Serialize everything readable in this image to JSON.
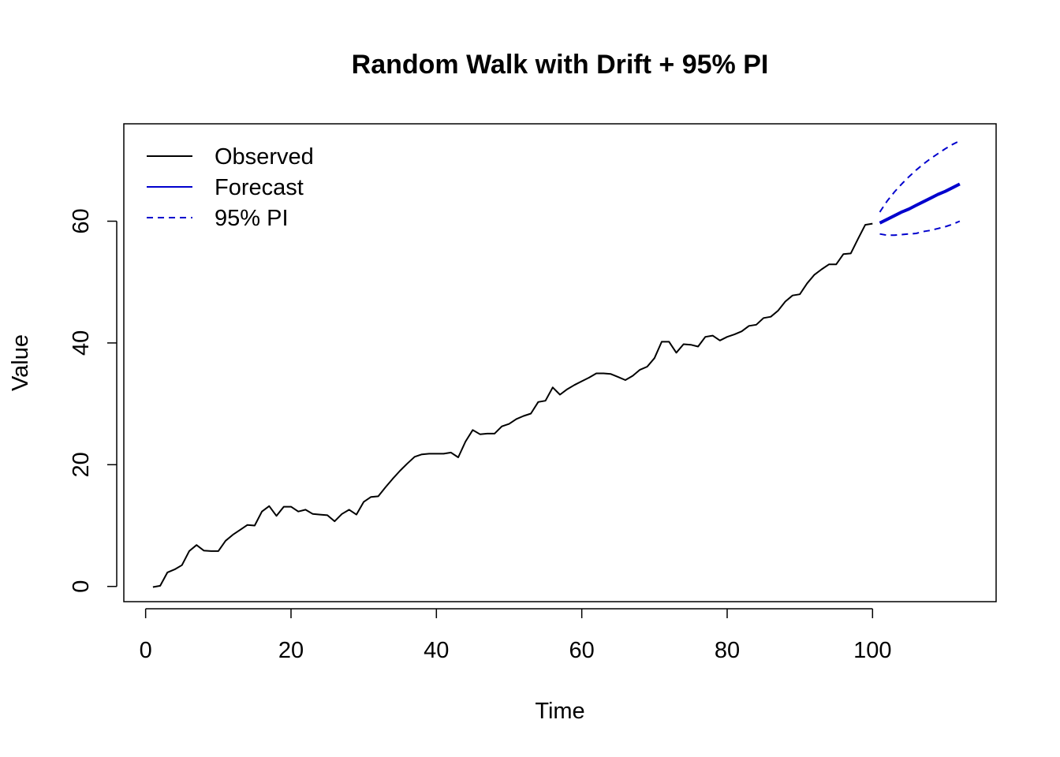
{
  "chart_data": {
    "type": "line",
    "title": "Random Walk with Drift + 95% PI",
    "xlabel": "Time",
    "ylabel": "Value",
    "xlim": [
      -3,
      117
    ],
    "ylim": [
      -2.5,
      76
    ],
    "x_ticks": [
      0,
      20,
      40,
      60,
      80,
      100
    ],
    "y_ticks": [
      0,
      20,
      40,
      60
    ],
    "grid": false,
    "legend_position": "top-left",
    "series": [
      {
        "name": "Observed",
        "color": "#000000",
        "style": "solid",
        "x": [
          1,
          2,
          3,
          4,
          5,
          6,
          7,
          8,
          9,
          10,
          11,
          12,
          13,
          14,
          15,
          16,
          17,
          18,
          19,
          20,
          21,
          22,
          23,
          24,
          25,
          26,
          27,
          28,
          29,
          30,
          31,
          32,
          33,
          34,
          35,
          36,
          37,
          38,
          39,
          40,
          41,
          42,
          43,
          44,
          45,
          46,
          47,
          48,
          49,
          50,
          51,
          52,
          53,
          54,
          55,
          56,
          57,
          58,
          59,
          60,
          61,
          62,
          63,
          64,
          65,
          66,
          67,
          68,
          69,
          70,
          71,
          72,
          73,
          74,
          75,
          76,
          77,
          78,
          79,
          80,
          81,
          82,
          83,
          84,
          85,
          86,
          87,
          88,
          89,
          90,
          91,
          92,
          93,
          94,
          95,
          96,
          97,
          98,
          99,
          100
        ],
        "values": [
          -0.1,
          0.1,
          2.3,
          2.8,
          3.5,
          5.8,
          6.8,
          5.9,
          5.8,
          5.8,
          7.5,
          8.5,
          9.3,
          10.1,
          10.0,
          12.3,
          13.2,
          11.6,
          13.1,
          13.1,
          12.3,
          12.6,
          11.9,
          11.8,
          11.7,
          10.7,
          11.9,
          12.6,
          11.8,
          13.9,
          14.7,
          14.8,
          16.3,
          17.7,
          19.0,
          20.2,
          21.3,
          21.7,
          21.8,
          21.8,
          21.8,
          22.0,
          21.2,
          23.8,
          25.7,
          25.0,
          25.1,
          25.1,
          26.3,
          26.7,
          27.5,
          28.0,
          28.4,
          30.3,
          30.5,
          32.7,
          31.5,
          32.4,
          33.1,
          33.7,
          34.3,
          35.0,
          35.0,
          34.9,
          34.4,
          33.9,
          34.6,
          35.6,
          36.1,
          37.5,
          40.2,
          40.2,
          38.4,
          39.8,
          39.7,
          39.4,
          41.0,
          41.2,
          40.4,
          41.0,
          41.4,
          41.9,
          42.8,
          43.0,
          44.1,
          44.3,
          45.3,
          46.8,
          47.8,
          48.0,
          49.8,
          51.2,
          52.1,
          52.9,
          52.9,
          54.6,
          54.7,
          57.1,
          59.4,
          59.6
        ]
      },
      {
        "name": "Forecast",
        "color": "#0000cd",
        "style": "solid-thick",
        "x": [
          101,
          102,
          103,
          104,
          105,
          106,
          107,
          108,
          109,
          110,
          111,
          112
        ],
        "values": [
          59.7,
          60.3,
          60.9,
          61.5,
          62.0,
          62.6,
          63.2,
          63.8,
          64.4,
          64.9,
          65.5,
          66.1
        ]
      },
      {
        "name": "95% PI",
        "color": "#0000cd",
        "style": "dashed",
        "x": [
          101,
          102,
          103,
          104,
          105,
          106,
          107,
          108,
          109,
          110,
          111,
          112
        ],
        "values": [
          61.5,
          63.3,
          64.8,
          66.1,
          67.3,
          68.4,
          69.4,
          70.3,
          71.1,
          71.9,
          72.6,
          73.2
        ]
      },
      {
        "name": "95% PI",
        "color": "#0000cd",
        "style": "dashed",
        "x": [
          101,
          102,
          103,
          104,
          105,
          106,
          107,
          108,
          109,
          110,
          111,
          112
        ],
        "values": [
          57.9,
          57.7,
          57.7,
          57.8,
          57.9,
          58.0,
          58.3,
          58.5,
          58.8,
          59.1,
          59.5,
          60.0
        ]
      }
    ],
    "legend": [
      {
        "label": "Observed",
        "color": "#000000",
        "style": "solid"
      },
      {
        "label": "Forecast",
        "color": "#0000cd",
        "style": "solid"
      },
      {
        "label": "95% PI",
        "color": "#0000cd",
        "style": "dashed"
      }
    ]
  }
}
